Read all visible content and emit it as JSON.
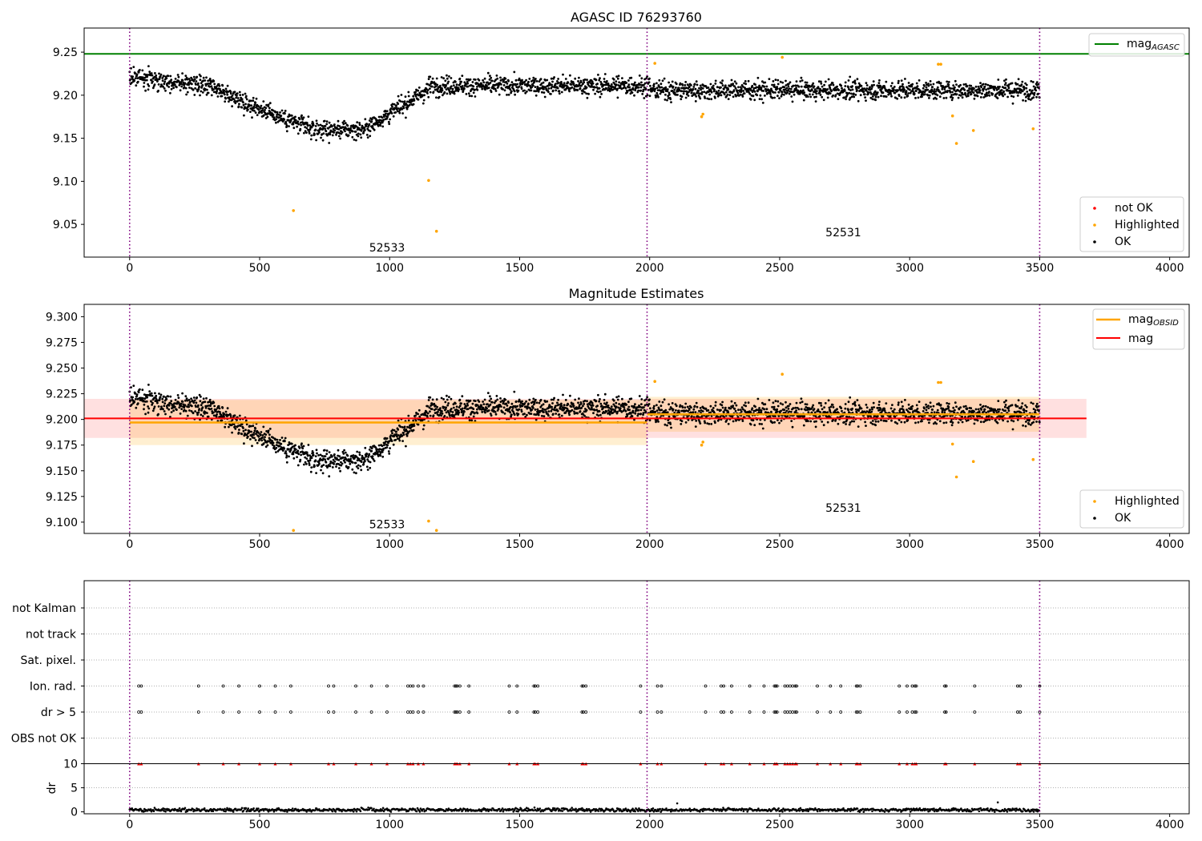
{
  "figure": {
    "xlim": [
      -175,
      4075
    ]
  },
  "chart_data": [
    {
      "type": "scatter",
      "title": "AGASC ID 76293760",
      "xlabel": "",
      "ylabel": "",
      "xlim": [
        -175,
        4075
      ],
      "ylim": [
        9.012,
        9.278
      ],
      "x_ticks": [
        0,
        500,
        1000,
        1500,
        2000,
        2500,
        3000,
        3500,
        4000
      ],
      "y_ticks": [
        9.05,
        9.1,
        9.15,
        9.2,
        9.25
      ],
      "y_tick_decimals": 2,
      "grid": false,
      "legend_lines": {
        "position": "top-right",
        "entries": [
          "mag_AGASC"
        ]
      },
      "legend_markers": {
        "position": "bottom-right",
        "entries": [
          {
            "label": "not OK",
            "color": "#ff0000"
          },
          {
            "label": "Highlighted",
            "color": "#ffa500"
          },
          {
            "label": "OK",
            "color": "#000000"
          }
        ]
      },
      "hlines": [
        {
          "name": "mag_AGASC",
          "y": 9.248,
          "x_range": [
            -175,
            4075
          ],
          "color": "#008000",
          "width": 2
        }
      ],
      "bands": [],
      "obsid_boundaries": [
        0,
        1990,
        3500
      ],
      "obsid_labels": [
        {
          "text": "52533",
          "x": 990,
          "y": 9.023
        },
        {
          "text": "52531",
          "x": 2745,
          "y": 9.041
        }
      ],
      "series": [
        {
          "name": "OK",
          "color": "#000000",
          "description": "dense cloud of ~3500 black points, magnitude dips from ~9.22 to ~9.16 between 400 and 1000, then ~9.21 to 3500"
        },
        {
          "name": "Highlighted",
          "color": "#ffa500",
          "x": [
            630,
            1150,
            1180,
            2020,
            2200,
            2205,
            2510,
            3110,
            3120,
            3165,
            3180,
            3245,
            3475
          ],
          "y": [
            9.066,
            9.101,
            9.042,
            9.237,
            9.175,
            9.178,
            9.244,
            9.236,
            9.236,
            9.176,
            9.144,
            9.159,
            9.161
          ]
        }
      ]
    },
    {
      "type": "scatter",
      "title": "Magnitude Estimates",
      "xlabel": "",
      "ylabel": "",
      "xlim": [
        -175,
        4075
      ],
      "ylim": [
        9.089,
        9.312
      ],
      "x_ticks": [
        0,
        500,
        1000,
        1500,
        2000,
        2500,
        3000,
        3500,
        4000
      ],
      "y_ticks": [
        9.1,
        9.125,
        9.15,
        9.175,
        9.2,
        9.225,
        9.25,
        9.275,
        9.3
      ],
      "y_tick_decimals": 3,
      "grid": false,
      "legend_lines": {
        "position": "top-right",
        "entries": [
          "mag_OBSID",
          "mag"
        ]
      },
      "legend_markers": {
        "position": "bottom-right",
        "entries": [
          {
            "label": "Highlighted",
            "color": "#ffa500"
          },
          {
            "label": "OK",
            "color": "#000000"
          }
        ]
      },
      "hlines": [
        {
          "name": "mag_OBSID",
          "y": 9.197,
          "x_range": [
            0,
            1990
          ],
          "color": "#ffa500",
          "width": 2.5
        },
        {
          "name": "mag_OBSID",
          "y": 9.205,
          "x_range": [
            1990,
            3500
          ],
          "color": "#ffa500",
          "width": 2.5
        },
        {
          "name": "mag",
          "y": 9.201,
          "x_range": [
            -175,
            3680
          ],
          "color": "#ff0000",
          "width": 2
        }
      ],
      "bands": [
        {
          "x_range": [
            -175,
            3680
          ],
          "y_range": [
            9.182,
            9.22
          ],
          "color": "#ff0000",
          "opacity": 0.12
        },
        {
          "x_range": [
            0,
            1990
          ],
          "y_range": [
            9.175,
            9.219
          ],
          "color": "#ffa500",
          "opacity": 0.18
        },
        {
          "x_range": [
            1990,
            3500
          ],
          "y_range": [
            9.188,
            9.222
          ],
          "color": "#ffa500",
          "opacity": 0.18
        }
      ],
      "obsid_boundaries": [
        0,
        1990,
        3500
      ],
      "obsid_labels": [
        {
          "text": "52533",
          "x": 990,
          "y": 9.098
        },
        {
          "text": "52531",
          "x": 2745,
          "y": 9.114
        }
      ],
      "series": [
        {
          "name": "OK",
          "color": "#000000",
          "description": "same dense black point cloud as top panel"
        },
        {
          "name": "Highlighted",
          "color": "#ffa500",
          "x": [
            630,
            1150,
            1180,
            2020,
            2200,
            2205,
            2510,
            3110,
            3120,
            3165,
            3180,
            3245,
            3475
          ],
          "y": [
            9.092,
            9.101,
            9.092,
            9.237,
            9.175,
            9.178,
            9.244,
            9.236,
            9.236,
            9.176,
            9.144,
            9.159,
            9.161
          ]
        }
      ]
    },
    {
      "type": "scatter",
      "title": "",
      "xlabel": "",
      "ylabel": "",
      "xlim": [
        -175,
        4075
      ],
      "categories": [
        "not Kalman",
        "not track",
        "Sat. pixel.",
        "Ion. rad.",
        "dr > 5",
        "OBS not OK"
      ],
      "flag_events_x": [
        35,
        45,
        265,
        360,
        420,
        500,
        560,
        620,
        765,
        785,
        870,
        930,
        990,
        1070,
        1080,
        1090,
        1110,
        1130,
        1250,
        1255,
        1260,
        1270,
        1305,
        1460,
        1490,
        1555,
        1560,
        1570,
        1740,
        1745,
        1755,
        1965,
        2030,
        2045,
        2215,
        2275,
        2285,
        2315,
        2385,
        2440,
        2480,
        2485,
        2490,
        2520,
        2530,
        2540,
        2550,
        2560,
        2565,
        2645,
        2695,
        2735,
        2795,
        2800,
        2810,
        2960,
        2990,
        3010,
        3020,
        3025,
        3135,
        3140,
        3250,
        3415,
        3425,
        3500
      ],
      "flag_rows": [
        "Ion. rad.",
        "dr > 5"
      ],
      "obsid_boundaries": [
        0,
        1990,
        3500
      ]
    },
    {
      "type": "scatter",
      "title": "",
      "xlabel": "",
      "ylabel": "dr",
      "xlim": [
        -175,
        4075
      ],
      "ylim": [
        -0.4,
        10
      ],
      "x_ticks": [
        0,
        500,
        1000,
        1500,
        2000,
        2500,
        3000,
        3500,
        4000
      ],
      "y_ticks": [
        0,
        5,
        10
      ],
      "clipped_marker_y": 10,
      "clipped_marker_color": "#ff0000",
      "series": [
        {
          "name": "dr",
          "color": "#000000",
          "description": "black points near 0-1 across 0..3500 with a few spikes ~1.8"
        }
      ],
      "obsid_boundaries": [
        0,
        1990,
        3500
      ]
    }
  ]
}
